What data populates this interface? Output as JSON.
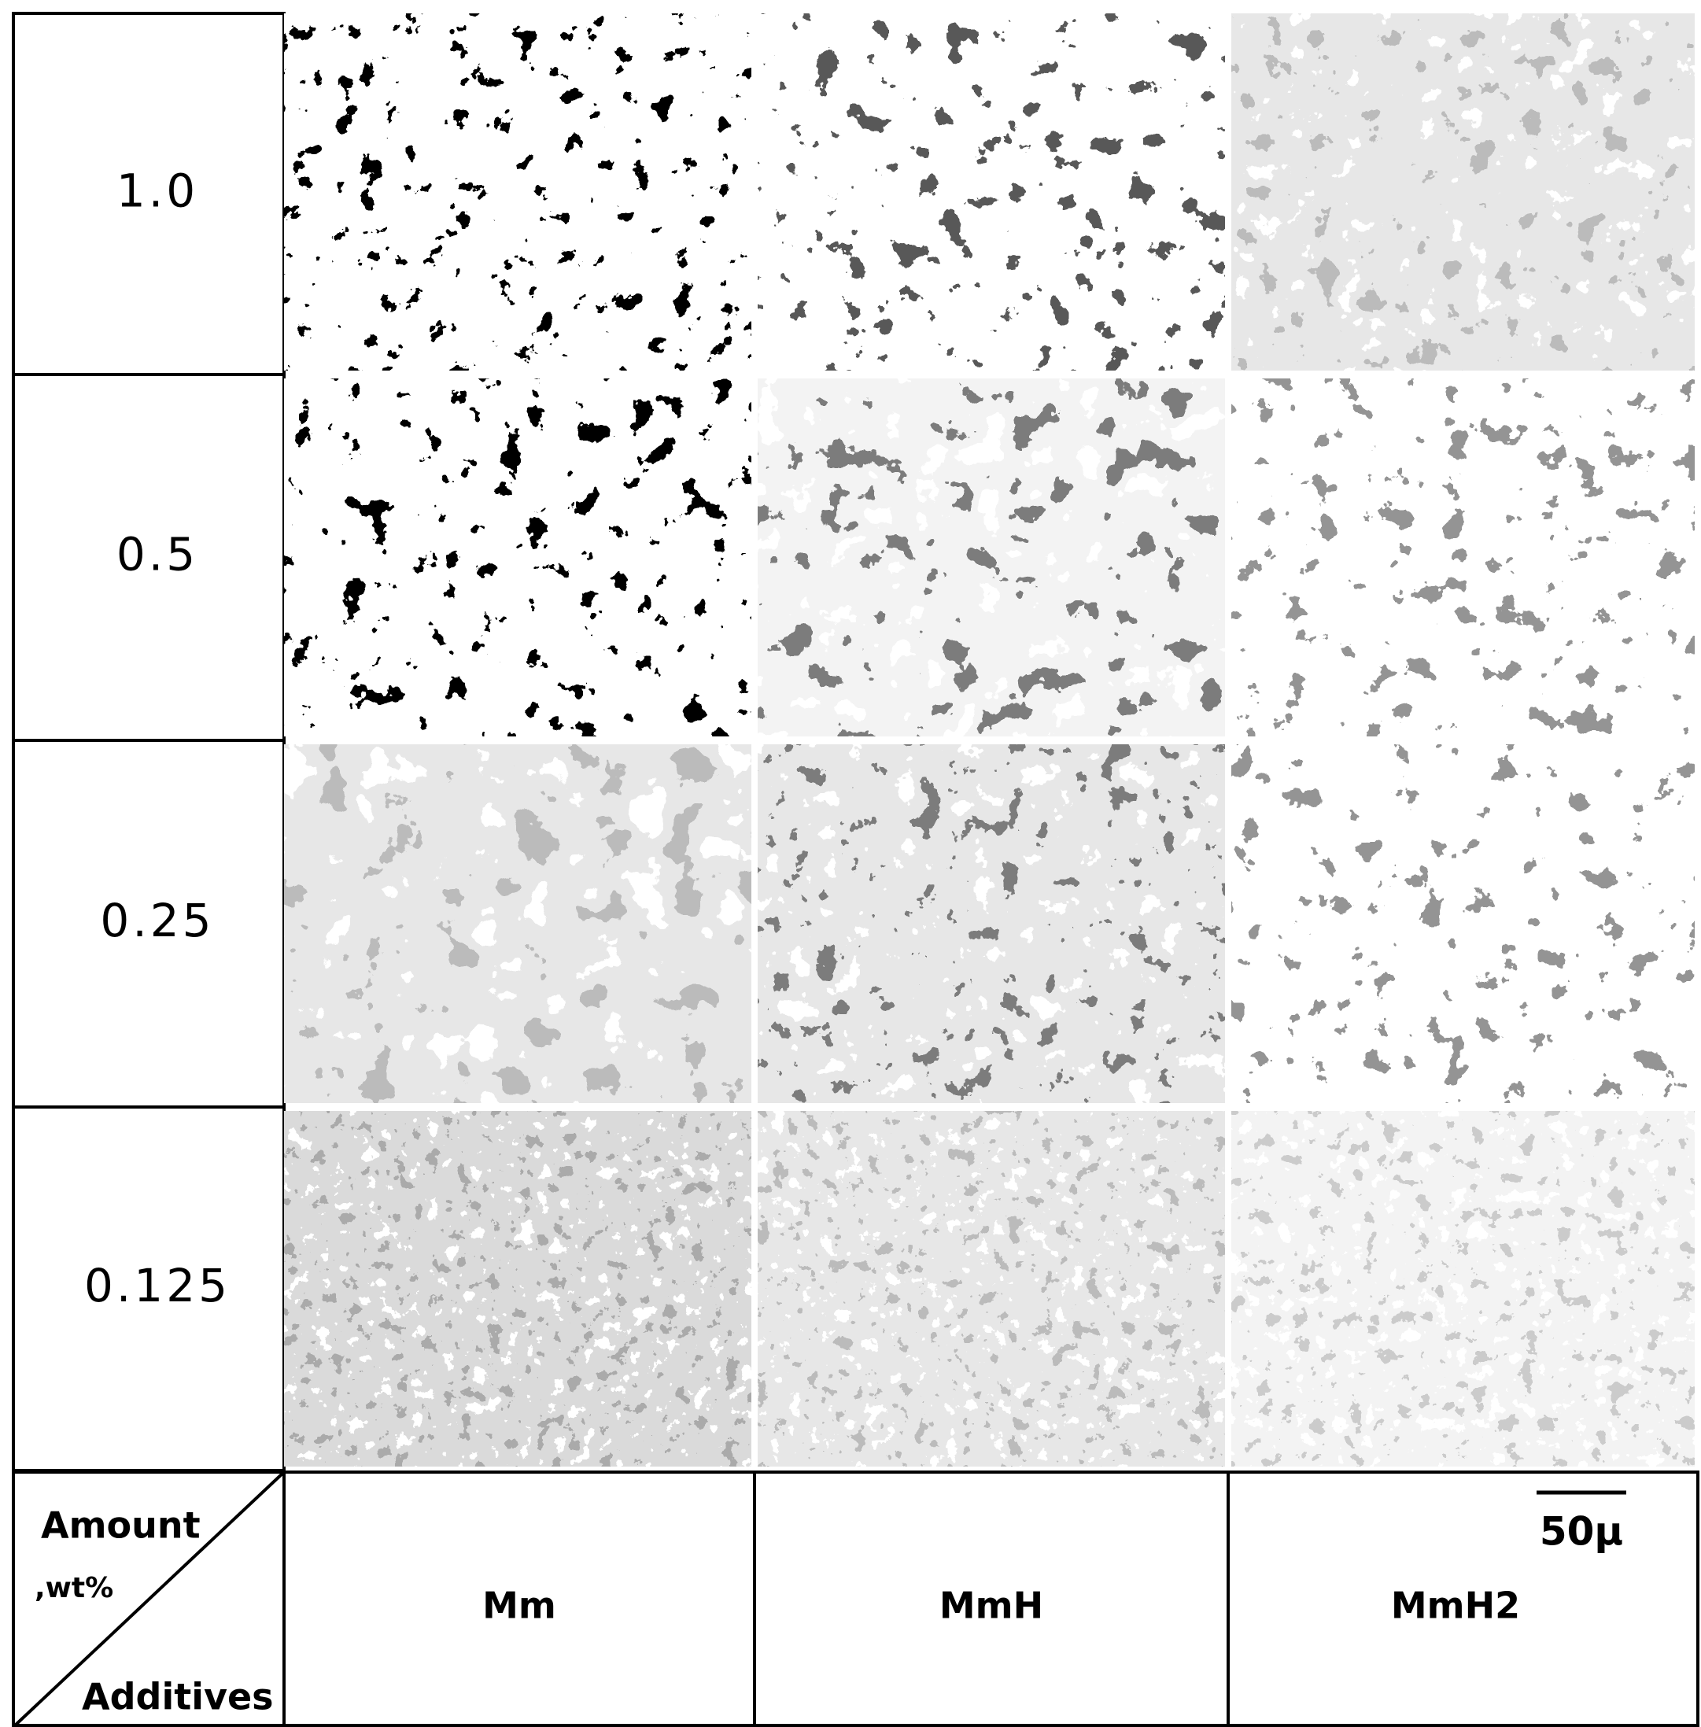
{
  "rows": [
    {
      "label": "1.0"
    },
    {
      "label": "0.5"
    },
    {
      "label": "0.25"
    },
    {
      "label": "0.125"
    }
  ],
  "columns": [
    "Mm",
    "MmH",
    "MmH2"
  ],
  "corner": {
    "top": "Amount",
    "middle": ",wt%",
    "bottom": "Additives"
  },
  "scale_bar": "50μ"
}
